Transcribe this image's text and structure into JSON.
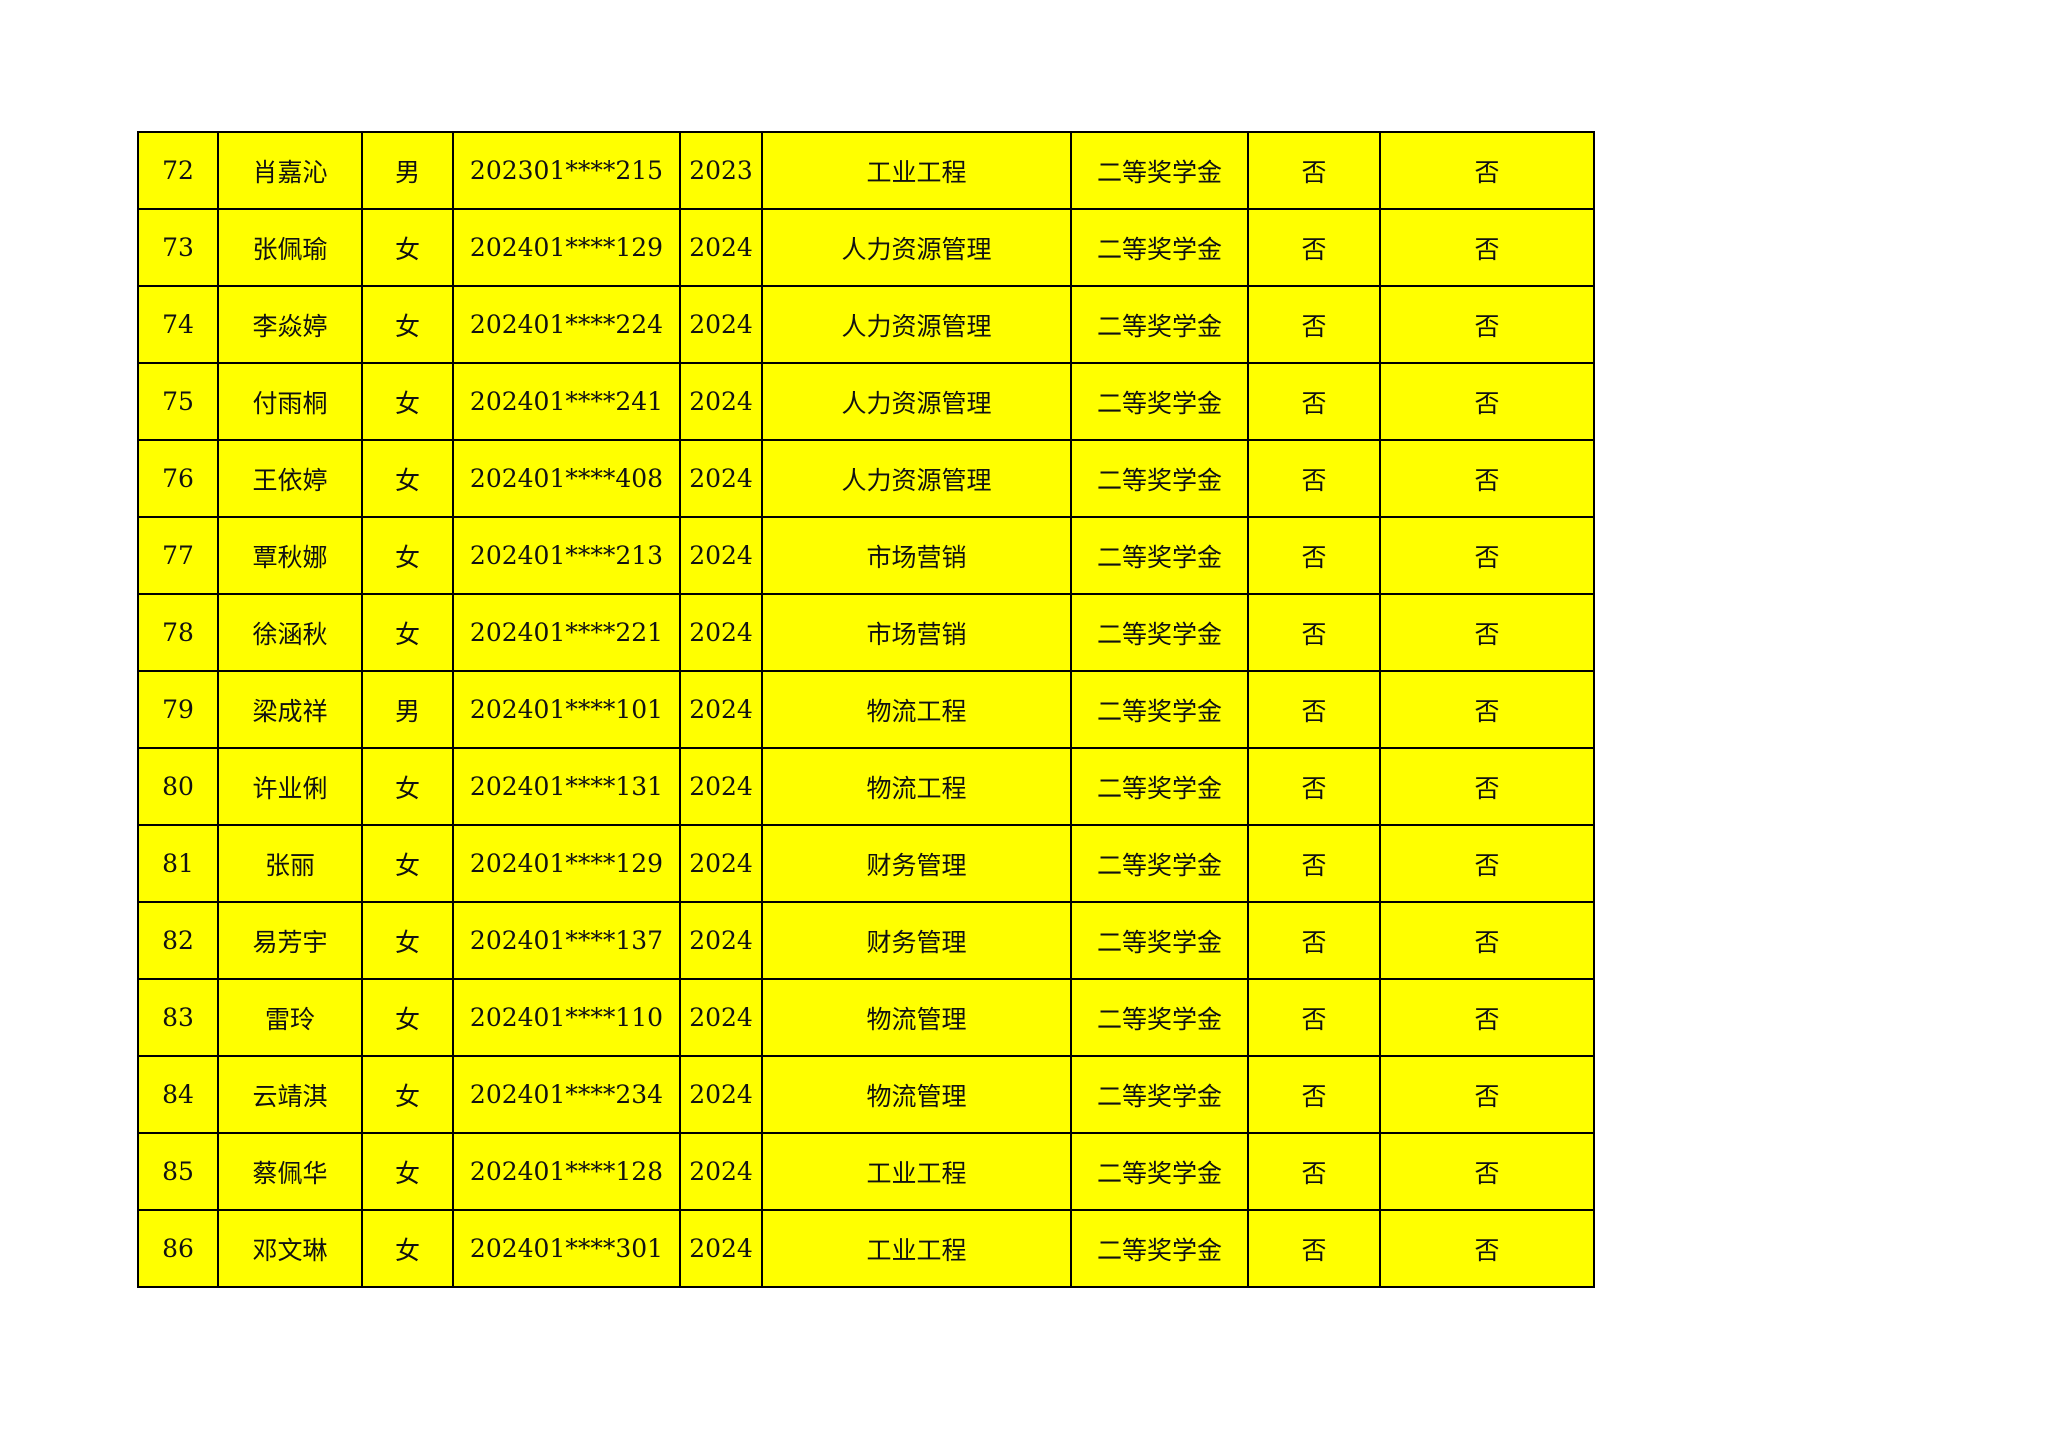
{
  "fill_color": "#ffff00",
  "rows": [
    [
      "72",
      "肖嘉沁",
      "男",
      "202301****215",
      "2023",
      "工业工程",
      "二等奖学金",
      "否",
      "否"
    ],
    [
      "73",
      "张佩瑜",
      "女",
      "202401****129",
      "2024",
      "人力资源管理",
      "二等奖学金",
      "否",
      "否"
    ],
    [
      "74",
      "李焱婷",
      "女",
      "202401****224",
      "2024",
      "人力资源管理",
      "二等奖学金",
      "否",
      "否"
    ],
    [
      "75",
      "付雨桐",
      "女",
      "202401****241",
      "2024",
      "人力资源管理",
      "二等奖学金",
      "否",
      "否"
    ],
    [
      "76",
      "王依婷",
      "女",
      "202401****408",
      "2024",
      "人力资源管理",
      "二等奖学金",
      "否",
      "否"
    ],
    [
      "77",
      "覃秋娜",
      "女",
      "202401****213",
      "2024",
      "市场营销",
      "二等奖学金",
      "否",
      "否"
    ],
    [
      "78",
      "徐涵秋",
      "女",
      "202401****221",
      "2024",
      "市场营销",
      "二等奖学金",
      "否",
      "否"
    ],
    [
      "79",
      "梁成祥",
      "男",
      "202401****101",
      "2024",
      "物流工程",
      "二等奖学金",
      "否",
      "否"
    ],
    [
      "80",
      "许业俐",
      "女",
      "202401****131",
      "2024",
      "物流工程",
      "二等奖学金",
      "否",
      "否"
    ],
    [
      "81",
      "张丽",
      "女",
      "202401****129",
      "2024",
      "财务管理",
      "二等奖学金",
      "否",
      "否"
    ],
    [
      "82",
      "易芳宇",
      "女",
      "202401****137",
      "2024",
      "财务管理",
      "二等奖学金",
      "否",
      "否"
    ],
    [
      "83",
      "雷玲",
      "女",
      "202401****110",
      "2024",
      "物流管理",
      "二等奖学金",
      "否",
      "否"
    ],
    [
      "84",
      "云靖淇",
      "女",
      "202401****234",
      "2024",
      "物流管理",
      "二等奖学金",
      "否",
      "否"
    ],
    [
      "85",
      "蔡佩华",
      "女",
      "202401****128",
      "2024",
      "工业工程",
      "二等奖学金",
      "否",
      "否"
    ],
    [
      "86",
      "邓文琳",
      "女",
      "202401****301",
      "2024",
      "工业工程",
      "二等奖学金",
      "否",
      "否"
    ]
  ]
}
